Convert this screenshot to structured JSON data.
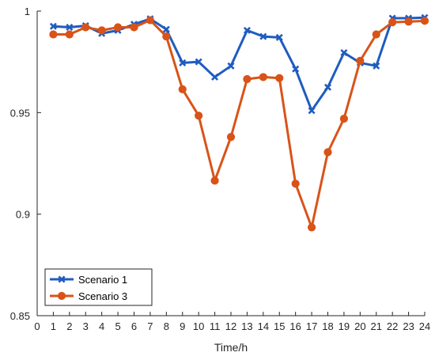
{
  "chart_data": {
    "type": "line",
    "title": "",
    "xlabel": "Time/h",
    "ylabel": "",
    "x": [
      1,
      2,
      3,
      4,
      5,
      6,
      7,
      8,
      9,
      10,
      11,
      12,
      13,
      14,
      15,
      16,
      17,
      18,
      19,
      20,
      21,
      22,
      23,
      24
    ],
    "xlim": [
      0,
      24
    ],
    "ylim": [
      0.85,
      1
    ],
    "x_ticks": [
      0,
      1,
      2,
      3,
      4,
      5,
      6,
      7,
      8,
      9,
      10,
      11,
      12,
      13,
      14,
      15,
      16,
      17,
      18,
      19,
      20,
      21,
      22,
      23,
      24
    ],
    "x_tick_labels": [
      "0",
      "1",
      "2",
      "3",
      "4",
      "5",
      "6",
      "7",
      "8",
      "9",
      "10",
      "11",
      "12",
      "13",
      "14",
      "15",
      "16",
      "17",
      "18",
      "19",
      "20",
      "21",
      "22",
      "23",
      "24"
    ],
    "y_ticks": [
      0.85,
      0.9,
      0.95,
      1
    ],
    "y_tick_labels": [
      "0.85",
      "0.9",
      "0.95",
      "1"
    ],
    "grid": false,
    "legend_position": "bottom-left",
    "series": [
      {
        "name": "Scenario 1",
        "color": "#1f5cbf",
        "marker": "x",
        "values": [
          0.9925,
          0.992,
          0.9928,
          0.989,
          0.9905,
          0.9935,
          0.9962,
          0.991,
          0.9745,
          0.975,
          0.9675,
          0.973,
          0.9905,
          0.9875,
          0.987,
          0.9715,
          0.951,
          0.9625,
          0.9795,
          0.9745,
          0.973,
          0.9965,
          0.9965,
          0.9968
        ]
      },
      {
        "name": "Scenario 3",
        "color": "#d95319",
        "marker": "o",
        "values": [
          0.9885,
          0.9885,
          0.992,
          0.9905,
          0.992,
          0.992,
          0.9955,
          0.9875,
          0.9615,
          0.9485,
          0.9165,
          0.938,
          0.9665,
          0.9675,
          0.967,
          0.915,
          0.8935,
          0.9305,
          0.947,
          0.9755,
          0.9885,
          0.9945,
          0.9948,
          0.9952
        ]
      }
    ]
  }
}
